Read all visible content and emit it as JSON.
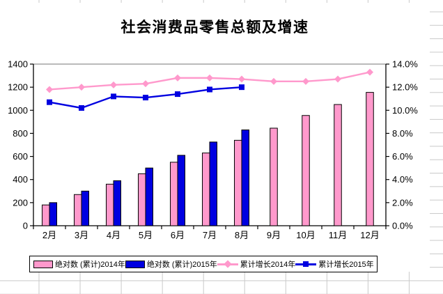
{
  "title": "社会消费品零售总额及增速",
  "chart_data": {
    "type": "bar+line combo, dual axis",
    "categories": [
      "2月",
      "3月",
      "4月",
      "5月",
      "6月",
      "7月",
      "8月",
      "9月",
      "10月",
      "11月",
      "12月"
    ],
    "series": [
      {
        "name": "绝对数 (累计)2014年",
        "type": "bar",
        "axis": "left",
        "color": "#FF99CC",
        "marker": null,
        "values": [
          180,
          270,
          360,
          450,
          550,
          630,
          740,
          845,
          955,
          1050,
          1155
        ]
      },
      {
        "name": "绝对数 (累计)2015年",
        "type": "bar",
        "axis": "left",
        "color": "#0000E0",
        "marker": null,
        "values": [
          200,
          300,
          390,
          500,
          610,
          725,
          830,
          null,
          null,
          null,
          null
        ]
      },
      {
        "name": "累计增长2014年",
        "type": "line",
        "axis": "right",
        "color": "#FF99CC",
        "marker": "diamond",
        "values": [
          11.8,
          12.0,
          12.2,
          12.3,
          12.8,
          12.8,
          12.7,
          12.5,
          12.5,
          12.7,
          13.3
        ]
      },
      {
        "name": "累计增长2015年",
        "type": "line",
        "axis": "right",
        "color": "#0000E0",
        "marker": "square",
        "values": [
          10.7,
          10.2,
          11.2,
          11.1,
          11.4,
          11.8,
          12.0,
          null,
          null,
          null,
          null
        ]
      }
    ],
    "left_axis": {
      "min": 0,
      "max": 1400,
      "step": 200,
      "labels": [
        "0",
        "200",
        "400",
        "600",
        "800",
        "1000",
        "1200",
        "1400"
      ]
    },
    "right_axis": {
      "min": 0,
      "max": 14,
      "step": 2,
      "labels": [
        "0.0%",
        "2.0%",
        "4.0%",
        "6.0%",
        "8.0%",
        "10.0%",
        "12.0%",
        "14.0%"
      ]
    },
    "legend_position": "bottom",
    "gridlines": "off",
    "plot_border_top_color": "#909090",
    "axis_color": "#000000"
  }
}
